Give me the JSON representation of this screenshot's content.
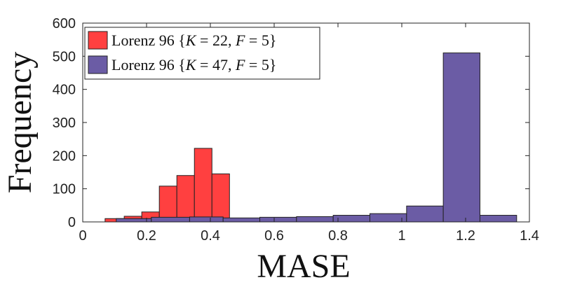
{
  "chart_data": {
    "type": "bar",
    "title": "",
    "xlabel": "MASE",
    "ylabel": "Frequency",
    "xlim": [
      0,
      1.4
    ],
    "ylim": [
      0,
      600
    ],
    "xticks": [
      0,
      0.2,
      0.4,
      0.6,
      0.8,
      1,
      1.2,
      1.4
    ],
    "xtick_labels": [
      "0",
      "0.2",
      "0.4",
      "0.6",
      "0.8",
      "1",
      "1.2",
      "1.4"
    ],
    "yticks": [
      0,
      100,
      200,
      300,
      400,
      500,
      600
    ],
    "ytick_labels": [
      "0",
      "100",
      "200",
      "300",
      "400",
      "500",
      "600"
    ],
    "legend_position": "top-left",
    "series": [
      {
        "name": "Lorenz 96 {K = 22, F = 5}",
        "legend_parts": [
          "Lorenz 96 {",
          "K",
          " = 22, ",
          "F",
          " = 5}"
        ],
        "color": "#ff4040",
        "edge_color": "#222222",
        "bins": [
          {
            "x0": 0.07,
            "x1": 0.13,
            "count": 10
          },
          {
            "x0": 0.13,
            "x1": 0.185,
            "count": 17
          },
          {
            "x0": 0.185,
            "x1": 0.24,
            "count": 30
          },
          {
            "x0": 0.24,
            "x1": 0.295,
            "count": 108
          },
          {
            "x0": 0.295,
            "x1": 0.35,
            "count": 140
          },
          {
            "x0": 0.35,
            "x1": 0.405,
            "count": 222
          },
          {
            "x0": 0.405,
            "x1": 0.46,
            "count": 145
          }
        ]
      },
      {
        "name": "Lorenz 96 {K = 47, F = 5}",
        "legend_parts": [
          "Lorenz 96 {",
          "K",
          " = 47, ",
          "F",
          " = 5}"
        ],
        "color": "#6b5ca5",
        "edge_color": "#222222",
        "bins": [
          {
            "x0": 0.105,
            "x1": 0.215,
            "count": 10
          },
          {
            "x0": 0.215,
            "x1": 0.335,
            "count": 14
          },
          {
            "x0": 0.335,
            "x1": 0.44,
            "count": 15
          },
          {
            "x0": 0.44,
            "x1": 0.555,
            "count": 12
          },
          {
            "x0": 0.555,
            "x1": 0.67,
            "count": 14
          },
          {
            "x0": 0.67,
            "x1": 0.785,
            "count": 16
          },
          {
            "x0": 0.785,
            "x1": 0.9,
            "count": 20
          },
          {
            "x0": 0.9,
            "x1": 1.015,
            "count": 25
          },
          {
            "x0": 1.015,
            "x1": 1.13,
            "count": 48
          },
          {
            "x0": 1.13,
            "x1": 1.245,
            "count": 510
          },
          {
            "x0": 1.245,
            "x1": 1.36,
            "count": 20
          }
        ]
      }
    ]
  }
}
